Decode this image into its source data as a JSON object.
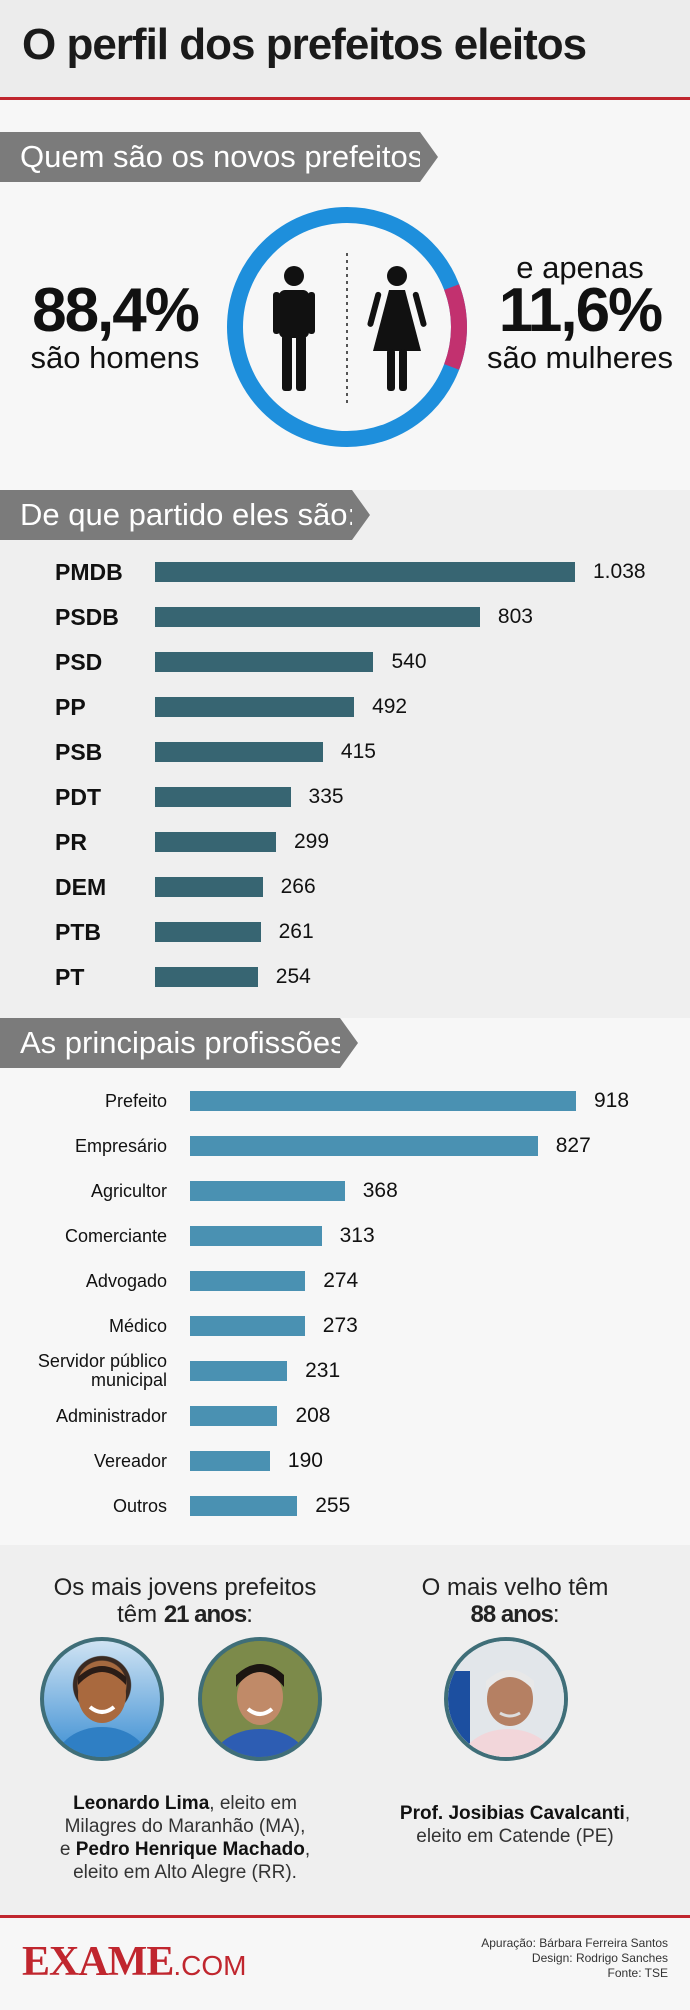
{
  "title": "O perfil dos prefeitos eleitos",
  "gender": {
    "section_title": "Quem são os novos prefeitos:",
    "men_pct": "88,4%",
    "men_label": "são homens",
    "women_prefix": "e apenas",
    "women_pct": "11,6%",
    "women_label": "são mulheres",
    "men_share": 0.884,
    "women_share": 0.116,
    "men_color": "#1e8fdc",
    "women_color": "#c2316f",
    "icons": [
      "man-icon",
      "woman-icon"
    ]
  },
  "parties": {
    "section_title": "De que partido eles são:",
    "bar_color": "#376572",
    "items": [
      {
        "name": "PMDB",
        "label": "1.038",
        "value": 1038
      },
      {
        "name": "PSDB",
        "label": "803",
        "value": 803
      },
      {
        "name": "PSD",
        "label": "540",
        "value": 540
      },
      {
        "name": "PP",
        "label": "492",
        "value": 492
      },
      {
        "name": "PSB",
        "label": "415",
        "value": 415
      },
      {
        "name": "PDT",
        "label": "335",
        "value": 335
      },
      {
        "name": "PR",
        "label": "299",
        "value": 299
      },
      {
        "name": "DEM",
        "label": "266",
        "value": 266
      },
      {
        "name": "PTB",
        "label": "261",
        "value": 261
      },
      {
        "name": "PT",
        "label": "254",
        "value": 254
      }
    ]
  },
  "professions": {
    "section_title": "As principais profissões:",
    "bar_color": "#4a91b2",
    "items": [
      {
        "name": "Prefeito",
        "label": "918",
        "value": 918
      },
      {
        "name": "Empresário",
        "label": "827",
        "value": 827
      },
      {
        "name": "Agricultor",
        "label": "368",
        "value": 368
      },
      {
        "name": "Comerciante",
        "label": "313",
        "value": 313
      },
      {
        "name": "Advogado",
        "label": "274",
        "value": 274
      },
      {
        "name": "Médico",
        "label": "273",
        "value": 273
      },
      {
        "name": "Servidor público municipal",
        "label": "231",
        "value": 231
      },
      {
        "name": "Administrador",
        "label": "208",
        "value": 208
      },
      {
        "name": "Vereador",
        "label": "190",
        "value": 190
      },
      {
        "name": "Outros",
        "label": "255",
        "value": 255
      }
    ]
  },
  "youngest": {
    "heading_line1": "Os mais jovens prefeitos",
    "heading_prefix": "têm ",
    "heading_age": "21 anos",
    "heading_suffix": ":",
    "name1": "Leonardo Lima",
    "desc1a": ", eleito em",
    "desc1b": "Milagres do Maranhão (MA),",
    "conj": "e ",
    "name2": "Pedro Henrique Machado",
    "desc2a": ",",
    "desc2b": "eleito em Alto Alegre (RR)."
  },
  "oldest": {
    "heading_line1": "O mais velho têm",
    "heading_age": "88 anos",
    "heading_suffix": ":",
    "name": "Prof. Josibias Cavalcanti",
    "desc_a": ",",
    "desc_b": "eleito em Catende (PE)"
  },
  "footer": {
    "brand_main": "EXAME",
    "brand_suffix": ".COM",
    "brand_color": "#c0262e",
    "credit1": "Apuração: Bárbara Ferreira Santos",
    "credit2": "Design: Rodrigo Sanches",
    "credit3": "Fonte: TSE"
  }
}
